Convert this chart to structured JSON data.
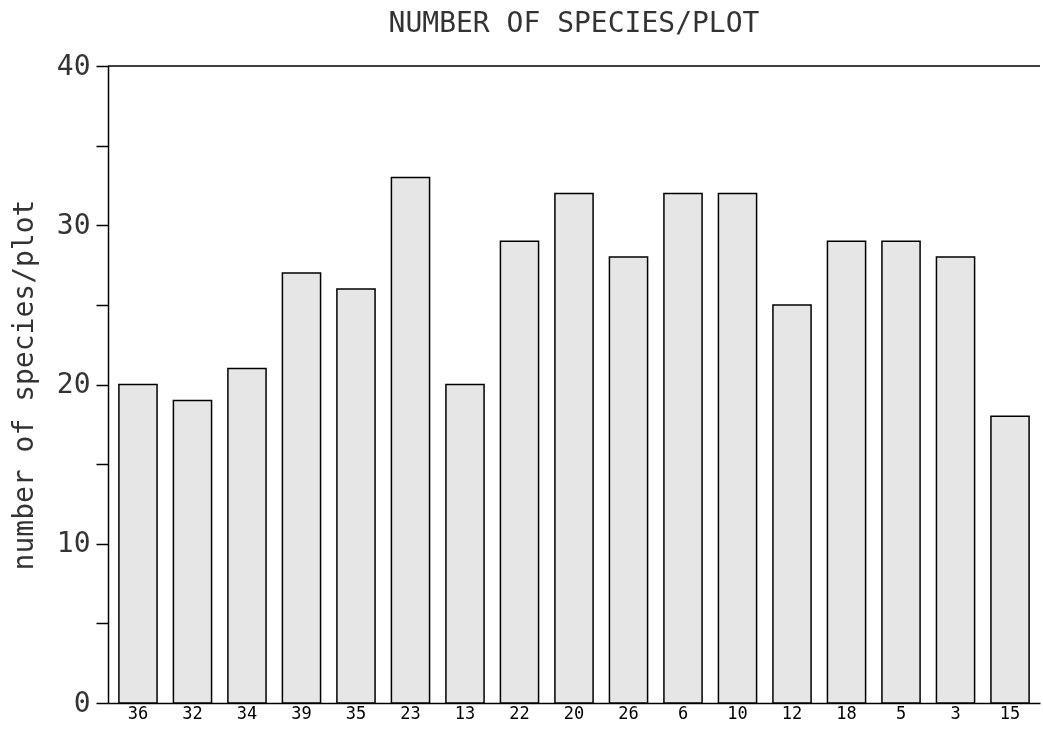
{
  "chart_data": {
    "type": "bar",
    "title": "NUMBER OF SPECIES/PLOT",
    "ylabel": "number of species/plot",
    "categories": [
      "36",
      "32",
      "34",
      "39",
      "35",
      "23",
      "13",
      "22",
      "20",
      "26",
      "6",
      "10",
      "12",
      "18",
      "5",
      "3",
      "15"
    ],
    "values": [
      20,
      19,
      21,
      27,
      26,
      33,
      20,
      29,
      32,
      28,
      32,
      32,
      25,
      29,
      29,
      28,
      18
    ],
    "color": "#e6e6e6",
    "ylim": [
      0,
      40
    ],
    "yticks": [
      0,
      {
        "value": 5,
        "label": null
      },
      10,
      {
        "value": 15,
        "label": null
      },
      20,
      {
        "value": 25,
        "label": null
      },
      30,
      {
        "value": 35,
        "label": null
      },
      40
    ],
    "grid": false
  }
}
